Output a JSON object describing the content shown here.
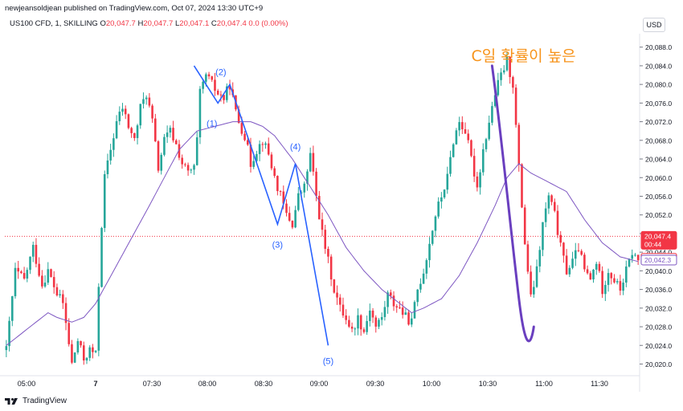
{
  "header": {
    "publish_line": "newjeansoldjean published on TradingView.com, Oct 07, 2024 13:30 UTC+9"
  },
  "symbol": {
    "name": "US100 CFD, 1, SKILLING",
    "o_label": "O",
    "o_value": "20,047.7",
    "h_label": "H",
    "h_value": "20,047.7",
    "l_label": "L",
    "l_value": "20,047.1",
    "c_label": "C",
    "c_value": "20,047.4",
    "change": "0.0 (0.00%)"
  },
  "currency_button": "USD",
  "footer": {
    "brand": "TradingView"
  },
  "colors": {
    "up": "#26a69a",
    "down": "#f23645",
    "ma": "#7e57c2",
    "wave": "#2962ff",
    "annotation": "#f7931a",
    "arrow": "#6a3fbf"
  },
  "chart_data": {
    "type": "candlestick",
    "x_ticks": [
      "05:00",
      "7",
      "07:30",
      "08:00",
      "08:30",
      "09:00",
      "09:30",
      "10:00",
      "10:30",
      "11:00",
      "11:30"
    ],
    "y_ticks": [
      20088,
      20084,
      20080,
      20076,
      20072,
      20068,
      20064,
      20060,
      20056,
      20052,
      20048,
      20044,
      20040,
      20036,
      20032,
      20028,
      20024,
      20020
    ],
    "y_tick_labels": [
      "20,088.0",
      "20,084.0",
      "20,080.0",
      "20,076.0",
      "20,072.0",
      "20,068.0",
      "20,064.0",
      "20,060.0",
      "20,056.0",
      "20,052.0",
      "20,048.0",
      "20,044.0",
      "20,040.0",
      "20,036.0",
      "20,032.0",
      "20,028.0",
      "20,024.0",
      "20,020.0"
    ],
    "ylim": [
      20017.5,
      20089.5
    ],
    "price_tags": [
      {
        "label": "20,047.4",
        "sub": "00:44",
        "value": 20047.4,
        "color": "#f23645"
      },
      {
        "label": "20,042.7",
        "value": 20042.7,
        "color": "#f23645"
      },
      {
        "label": "20,042.3",
        "value": 20042.3,
        "color": "#7e57c2"
      }
    ],
    "current_price": 20047.4,
    "ohlc_path": [
      [
        0,
        20023
      ],
      [
        3,
        20040
      ],
      [
        6,
        20038
      ],
      [
        9,
        20045
      ],
      [
        12,
        20037
      ],
      [
        14,
        20040
      ],
      [
        17,
        20035
      ],
      [
        19,
        20033
      ],
      [
        22,
        20020
      ],
      [
        24,
        20025
      ],
      [
        26,
        20021
      ],
      [
        28,
        20023
      ],
      [
        30,
        20022
      ],
      [
        31,
        20037
      ],
      [
        32,
        20050
      ],
      [
        33,
        20060
      ],
      [
        35,
        20066
      ],
      [
        37,
        20072
      ],
      [
        39,
        20075
      ],
      [
        41,
        20071
      ],
      [
        43,
        20068
      ],
      [
        45,
        20075
      ],
      [
        47,
        20078
      ],
      [
        49,
        20072
      ],
      [
        51,
        20062
      ],
      [
        53,
        20068
      ],
      [
        55,
        20070
      ],
      [
        57,
        20067
      ],
      [
        59,
        20063
      ],
      [
        61,
        20061
      ],
      [
        63,
        20062
      ],
      [
        64,
        20068
      ],
      [
        65,
        20078
      ],
      [
        67,
        20082
      ],
      [
        69,
        20080
      ],
      [
        71,
        20078
      ],
      [
        73,
        20077
      ],
      [
        75,
        20080
      ],
      [
        77,
        20074
      ],
      [
        78,
        20072
      ],
      [
        80,
        20069
      ],
      [
        82,
        20063
      ],
      [
        84,
        20066
      ],
      [
        86,
        20068
      ],
      [
        88,
        20065
      ],
      [
        90,
        20060
      ],
      [
        92,
        20056
      ],
      [
        94,
        20052
      ],
      [
        96,
        20050
      ],
      [
        98,
        20056
      ],
      [
        100,
        20058
      ],
      [
        102,
        20065
      ],
      [
        104,
        20056
      ],
      [
        106,
        20048
      ],
      [
        108,
        20042
      ],
      [
        110,
        20036
      ],
      [
        112,
        20032
      ],
      [
        114,
        20030
      ],
      [
        116,
        20027
      ],
      [
        118,
        20030
      ],
      [
        120,
        20027
      ],
      [
        122,
        20032
      ],
      [
        124,
        20028
      ],
      [
        126,
        20030
      ],
      [
        128,
        20035
      ],
      [
        130,
        20033
      ],
      [
        132,
        20032
      ],
      [
        134,
        20030
      ],
      [
        136,
        20029
      ],
      [
        138,
        20036
      ],
      [
        140,
        20040
      ],
      [
        142,
        20046
      ],
      [
        144,
        20052
      ],
      [
        146,
        20056
      ],
      [
        148,
        20060
      ],
      [
        150,
        20068
      ],
      [
        152,
        20072
      ],
      [
        154,
        20070
      ],
      [
        156,
        20064
      ],
      [
        158,
        20058
      ],
      [
        160,
        20066
      ],
      [
        162,
        20072
      ],
      [
        164,
        20078
      ],
      [
        166,
        20082
      ],
      [
        168,
        20085
      ],
      [
        170,
        20080
      ],
      [
        172,
        20062
      ],
      [
        174,
        20046
      ],
      [
        176,
        20034
      ],
      [
        178,
        20040
      ],
      [
        180,
        20050
      ],
      [
        182,
        20056
      ],
      [
        184,
        20052
      ],
      [
        186,
        20045
      ],
      [
        188,
        20040
      ],
      [
        190,
        20042
      ],
      [
        192,
        20045
      ],
      [
        194,
        20040
      ],
      [
        196,
        20038
      ],
      [
        198,
        20042
      ],
      [
        200,
        20036
      ],
      [
        202,
        20040
      ],
      [
        204,
        20038
      ],
      [
        206,
        20036
      ],
      [
        208,
        20040
      ],
      [
        210,
        20044
      ],
      [
        212,
        20042
      ]
    ],
    "ma_path": [
      [
        0,
        20024
      ],
      [
        8,
        20028
      ],
      [
        14,
        20031
      ],
      [
        17,
        20030
      ],
      [
        22,
        20029
      ],
      [
        26,
        20030
      ],
      [
        30,
        20033
      ],
      [
        36,
        20040
      ],
      [
        42,
        20047
      ],
      [
        48,
        20054
      ],
      [
        53,
        20060
      ],
      [
        58,
        20066
      ],
      [
        64,
        20070
      ],
      [
        70,
        20071
      ],
      [
        76,
        20072
      ],
      [
        82,
        20072
      ],
      [
        86,
        20071
      ],
      [
        90,
        20069
      ],
      [
        96,
        20064
      ],
      [
        102,
        20058
      ],
      [
        108,
        20052
      ],
      [
        114,
        20045
      ],
      [
        120,
        20040
      ],
      [
        126,
        20036
      ],
      [
        132,
        20033
      ],
      [
        136,
        20031
      ],
      [
        140,
        20032
      ],
      [
        146,
        20034
      ],
      [
        152,
        20039
      ],
      [
        158,
        20046
      ],
      [
        164,
        20054
      ],
      [
        168,
        20060
      ],
      [
        172,
        20063
      ],
      [
        176,
        20061
      ],
      [
        182,
        20059
      ],
      [
        188,
        20057
      ],
      [
        194,
        20051
      ],
      [
        200,
        20046
      ],
      [
        206,
        20043
      ],
      [
        212,
        20042
      ]
    ],
    "wave_path": [
      [
        63,
        20084
      ],
      [
        71,
        20076
      ],
      [
        75,
        20080
      ],
      [
        91,
        20050
      ],
      [
        97,
        20063
      ],
      [
        108,
        20024
      ]
    ],
    "wave_labels": [
      {
        "text": "(2)",
        "x": 72,
        "y": 20082
      },
      {
        "text": "(1)",
        "x": 69,
        "y": 20071
      },
      {
        "text": "(4)",
        "x": 97,
        "y": 20066
      },
      {
        "text": "(3)",
        "x": 91,
        "y": 20045
      },
      {
        "text": "(5)",
        "x": 108,
        "y": 20020
      }
    ],
    "arrow_path": [
      [
        163,
        20084
      ],
      [
        166,
        20070
      ],
      [
        169,
        20050
      ],
      [
        172,
        20034
      ],
      [
        177,
        20028
      ]
    ],
    "annotation": {
      "text": "C일 확률이 높은",
      "x": 156,
      "y": 20085
    }
  }
}
